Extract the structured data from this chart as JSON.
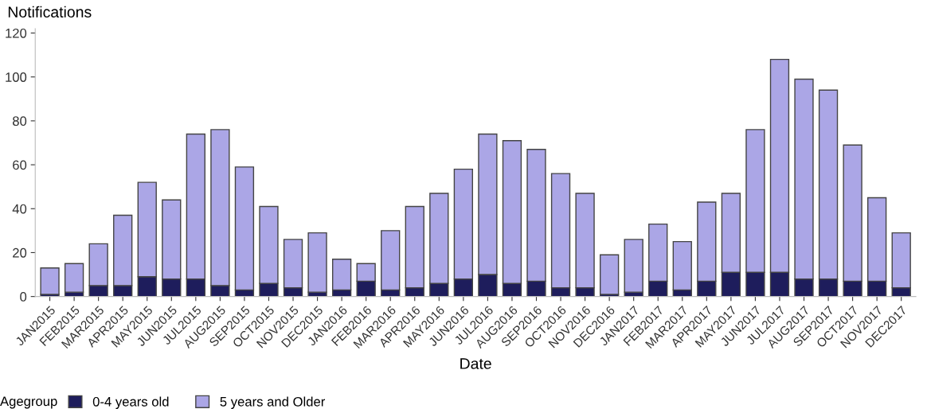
{
  "chart_data": {
    "type": "bar",
    "stacked": true,
    "ylabel": "Notifications",
    "xlabel": "Date",
    "legend_title": "Agegroup",
    "legend": "bottom",
    "grid": false,
    "categories": [
      "JAN2015",
      "FEB2015",
      "MAR2015",
      "APR2015",
      "MAY2015",
      "JUN2015",
      "JUL2015",
      "AUG2015",
      "SEP2015",
      "OCT2015",
      "NOV2015",
      "DEC2015",
      "JAN2016",
      "FEB2016",
      "MAR2016",
      "APR2016",
      "MAY2016",
      "JUN2016",
      "JUL2016",
      "AUG2016",
      "SEP2016",
      "OCT2016",
      "NOV2016",
      "DEC2016",
      "JAN2017",
      "FEB2017",
      "MAR2017",
      "APR2017",
      "MAY2017",
      "JUN2017",
      "JUL2017",
      "AUG2017",
      "SEP2017",
      "OCT2017",
      "NOV2017",
      "DEC2017"
    ],
    "series": [
      {
        "name": "0-4 years old",
        "color": "#1e1d5c",
        "values": [
          1,
          2,
          5,
          5,
          9,
          8,
          8,
          5,
          3,
          6,
          4,
          2,
          3,
          7,
          3,
          4,
          6,
          8,
          10,
          6,
          7,
          4,
          4,
          1,
          2,
          7,
          3,
          7,
          11,
          11,
          11,
          8,
          8,
          7,
          7,
          4
        ]
      },
      {
        "name": "5 years and Older",
        "color": "#aba6e6",
        "values": [
          12,
          13,
          19,
          32,
          43,
          36,
          66,
          71,
          56,
          35,
          22,
          27,
          14,
          8,
          27,
          37,
          41,
          50,
          64,
          65,
          60,
          52,
          43,
          18,
          24,
          26,
          22,
          36,
          36,
          65,
          97,
          91,
          86,
          62,
          38,
          25
        ]
      }
    ],
    "ylim": [
      0,
      122
    ],
    "yticks": [
      0,
      20,
      40,
      60,
      80,
      100,
      120
    ]
  }
}
